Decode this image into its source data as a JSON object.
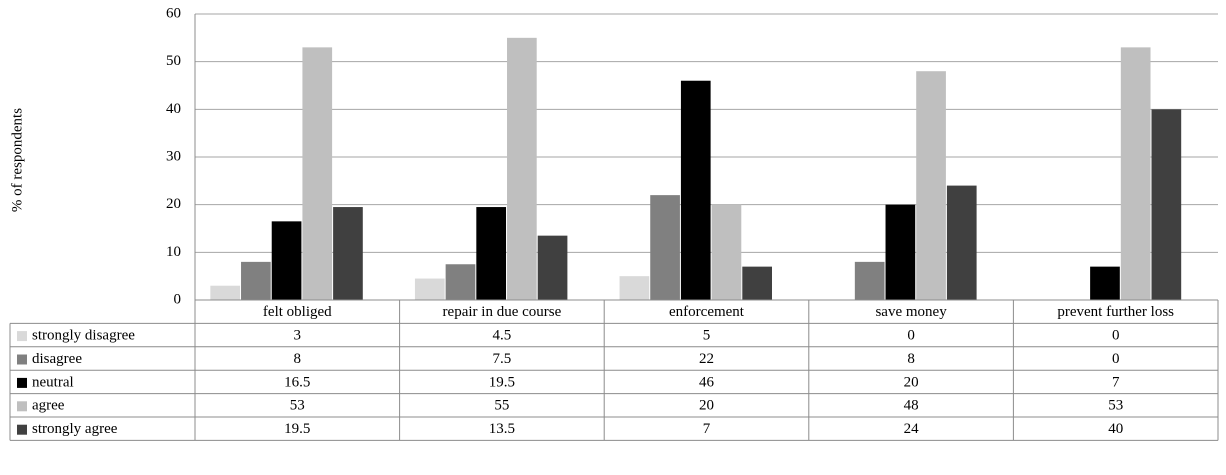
{
  "chart_data": {
    "type": "bar",
    "y_label": "% of respondents",
    "categories": [
      "felt obliged",
      "repair in due course",
      "enforcement",
      "save money",
      "prevent further loss"
    ],
    "series": [
      {
        "name": "strongly disagree",
        "color": "#d9d9d9",
        "values": [
          3,
          4.5,
          5,
          0,
          0
        ]
      },
      {
        "name": "disagree",
        "color": "#808080",
        "values": [
          8,
          7.5,
          22,
          8,
          0
        ]
      },
      {
        "name": "neutral",
        "color": "#000000",
        "values": [
          16.5,
          19.5,
          46,
          20,
          7
        ]
      },
      {
        "name": "agree",
        "color": "#bfbfbf",
        "values": [
          53,
          55,
          20,
          48,
          53
        ]
      },
      {
        "name": "strongly agree",
        "color": "#404040",
        "values": [
          19.5,
          13.5,
          7,
          24,
          40
        ]
      }
    ],
    "ylim": [
      0,
      60
    ],
    "yticks": [
      0,
      10,
      20,
      30,
      40,
      50,
      60
    ],
    "grid": true
  }
}
